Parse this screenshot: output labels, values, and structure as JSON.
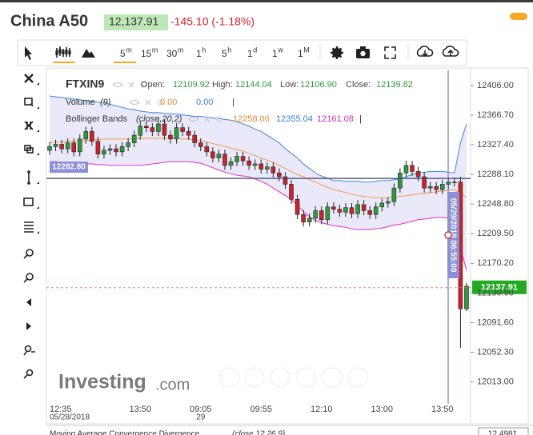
{
  "header": {
    "title": "China A50",
    "price": "12,137.91",
    "change": "-145.10 (-1.18%)"
  },
  "toolbar": {
    "intervals": [
      [
        "5",
        "m"
      ],
      [
        "15",
        "m"
      ],
      [
        "30",
        "m"
      ],
      [
        "1",
        "h"
      ],
      [
        "5",
        "h"
      ],
      [
        "1",
        "d"
      ],
      [
        "1",
        "w"
      ],
      [
        "1",
        "M"
      ]
    ]
  },
  "legend": {
    "symbol": "FTXIN9",
    "ohlc": [
      {
        "label": "Open:",
        "value": "12109.92"
      },
      {
        "label": "High:",
        "value": "12144.04"
      },
      {
        "label": "Low:",
        "value": "12106.90"
      },
      {
        "label": "Close:",
        "value": "12139.82"
      }
    ],
    "volume": {
      "name": "Volume",
      "params": "(9)",
      "values": [
        "0.00",
        "0.00"
      ],
      "sep": "|"
    },
    "bollinger": {
      "name": "Bollinger Bands",
      "params": "(close,20,2)",
      "values": [
        "12258.06",
        "12355.04",
        "12161.08"
      ],
      "sep": "|"
    }
  },
  "crosshair": {
    "price": "12282.80",
    "time": "05/29/2018 06:55:00"
  },
  "watermark": {
    "brand": "Investing",
    "suffix": ".com"
  },
  "macd": {
    "name": "Moving Average Convergence Divergence",
    "params": "(close,12,26,9)",
    "value": "12.4981"
  },
  "chart_data": {
    "type": "candlestick",
    "categories": [
      "12:35",
      null,
      null,
      null,
      null,
      null,
      null,
      null,
      null,
      null,
      null,
      null,
      null,
      null,
      null,
      "13:50",
      null,
      null,
      null,
      null,
      null,
      null,
      null,
      null,
      null,
      "09:05",
      null,
      null,
      null,
      null,
      null,
      null,
      null,
      null,
      null,
      "09:55",
      null,
      null,
      null,
      null,
      null,
      null,
      null,
      null,
      null,
      "12:10",
      null,
      null,
      null,
      null,
      null,
      null,
      null,
      null,
      null,
      "13:00",
      null,
      null,
      null,
      null,
      null,
      null,
      null,
      null,
      null,
      "13:50",
      null,
      null,
      null,
      null
    ],
    "dates": [
      "05/28/2018",
      null,
      null,
      null,
      null,
      null,
      null,
      null,
      null,
      null,
      null,
      null,
      null,
      null,
      null,
      null,
      null,
      null,
      null,
      null,
      null,
      null,
      null,
      null,
      null,
      "29",
      null,
      null,
      null,
      null,
      null,
      null,
      null,
      null,
      null,
      null,
      null,
      null,
      null,
      null,
      null,
      null,
      null,
      null,
      null,
      null,
      null,
      null,
      null,
      null,
      null,
      null,
      null,
      null,
      null,
      null,
      null,
      null,
      null,
      null,
      null,
      null,
      null,
      null,
      null,
      null,
      null,
      null,
      null,
      null
    ],
    "open": [
      12320,
      12325,
      12328,
      12322,
      12330,
      12318,
      12335,
      12345,
      12332,
      12315,
      12320,
      12322,
      12318,
      12325,
      12330,
      12340,
      12352,
      12350,
      12345,
      12355,
      12340,
      12335,
      12350,
      12345,
      12340,
      12330,
      12325,
      12318,
      12310,
      12315,
      12300,
      12305,
      12312,
      12306,
      12300,
      12302,
      12295,
      12298,
      12290,
      12285,
      12275,
      12255,
      12235,
      12225,
      12230,
      12240,
      12228,
      12245,
      12242,
      12238,
      12244,
      12236,
      12248,
      12240,
      12235,
      12245,
      12250,
      12252,
      12270,
      12290,
      12300,
      12292,
      12285,
      12270,
      12272,
      12268,
      12275,
      12278,
      12278,
      12109.92
    ],
    "high": [
      12331,
      12334,
      12334,
      12336,
      12336,
      12341,
      12351,
      12351,
      12338,
      12326,
      12328,
      12328,
      12331,
      12336,
      12346,
      12358,
      12358,
      12356,
      12361,
      12361,
      12346,
      12356,
      12356,
      12351,
      12346,
      12336,
      12331,
      12324,
      12321,
      12321,
      12311,
      12318,
      12318,
      12312,
      12308,
      12308,
      12304,
      12304,
      12296,
      12291,
      12281,
      12261,
      12241,
      12236,
      12246,
      12246,
      12251,
      12251,
      12248,
      12250,
      12250,
      12254,
      12254,
      12246,
      12251,
      12256,
      12258,
      12276,
      12296,
      12306,
      12306,
      12298,
      12291,
      12278,
      12278,
      12281,
      12284,
      12284,
      12285,
      12144.04
    ],
    "low": [
      12314,
      12319,
      12316,
      12316,
      12312,
      12312,
      12329,
      12326,
      12309,
      12309,
      12314,
      12312,
      12312,
      12319,
      12324,
      12334,
      12344,
      12339,
      12339,
      12334,
      12329,
      12329,
      12339,
      12334,
      12324,
      12319,
      12312,
      12304,
      12304,
      12294,
      12294,
      12299,
      12300,
      12294,
      12294,
      12289,
      12289,
      12284,
      12279,
      12269,
      12249,
      12229,
      12219,
      12219,
      12224,
      12222,
      12222,
      12236,
      12232,
      12232,
      12230,
      12230,
      12234,
      12229,
      12229,
      12239,
      12244,
      12246,
      12264,
      12284,
      12286,
      12279,
      12264,
      12264,
      12262,
      12262,
      12269,
      12272,
      12058,
      12106.9
    ],
    "close": [
      12325,
      12328,
      12322,
      12330,
      12318,
      12335,
      12345,
      12332,
      12315,
      12320,
      12322,
      12318,
      12325,
      12330,
      12340,
      12352,
      12350,
      12345,
      12355,
      12340,
      12335,
      12350,
      12345,
      12340,
      12330,
      12325,
      12318,
      12310,
      12315,
      12300,
      12305,
      12312,
      12306,
      12300,
      12302,
      12295,
      12298,
      12290,
      12285,
      12275,
      12255,
      12235,
      12225,
      12230,
      12240,
      12228,
      12245,
      12242,
      12238,
      12244,
      12236,
      12248,
      12240,
      12235,
      12245,
      12250,
      12252,
      12270,
      12290,
      12300,
      12292,
      12285,
      12270,
      12272,
      12268,
      12275,
      12278,
      12278,
      12110,
      12139.82
    ],
    "up_color": "#2f9a3c",
    "down_color": "#c8232c",
    "bollinger": {
      "upper_color": "#4d8fd8",
      "middle_color": "#f0a060",
      "lower_color": "#e040c8",
      "fill": "#e9e9fa",
      "upper": [
        12392,
        12391,
        12390,
        12389,
        12388,
        12387,
        12386,
        12385,
        12384,
        12383,
        12381,
        12379,
        12377,
        12375,
        12374,
        12372,
        12371,
        12370,
        12370,
        12369,
        12368,
        12368,
        12367,
        12366,
        12365,
        12365,
        12364,
        12363,
        12362,
        12361,
        12360,
        12358,
        12355,
        12352,
        12348,
        12345,
        12340,
        12335,
        12330,
        12322,
        12316,
        12310,
        12302,
        12296,
        12290,
        12286,
        12283,
        12280,
        12280,
        12279,
        12279,
        12279,
        12278,
        12278,
        12279,
        12280,
        12280,
        12281,
        12282,
        12285,
        12288,
        12290,
        12291,
        12292,
        12292,
        12292,
        12291,
        12290,
        12330,
        12355.04
      ],
      "middle": [
        12330,
        12331,
        12331,
        12332,
        12332,
        12333,
        12333,
        12334,
        12334,
        12335,
        12335,
        12335,
        12335,
        12335,
        12335,
        12336,
        12336,
        12336,
        12336,
        12336,
        12336,
        12336,
        12335,
        12335,
        12334,
        12333,
        12331,
        12329,
        12327,
        12325,
        12323,
        12321,
        12319,
        12316,
        12313,
        12310,
        12307,
        12304,
        12300,
        12296,
        12292,
        12288,
        12285,
        12281,
        12278,
        12274,
        12271,
        12268,
        12266,
        12264,
        12262,
        12260,
        12259,
        12258,
        12257,
        12257,
        12257,
        12258,
        12259,
        12260,
        12261,
        12262,
        12263,
        12264,
        12265,
        12266,
        12267,
        12268,
        12262,
        12258.06
      ],
      "lower": [
        12305,
        12305,
        12304,
        12304,
        12303,
        12303,
        12302,
        12302,
        12301,
        12301,
        12300,
        12300,
        12300,
        12300,
        12300,
        12300,
        12301,
        12302,
        12303,
        12304,
        12305,
        12305,
        12305,
        12305,
        12304,
        12303,
        12300,
        12297,
        12294,
        12291,
        12289,
        12287,
        12286,
        12285,
        12282,
        12279,
        12275,
        12270,
        12265,
        12260,
        12255,
        12247,
        12239,
        12232,
        12227,
        12224,
        12222,
        12220,
        12219,
        12218,
        12216,
        12215,
        12215,
        12215,
        12216,
        12217,
        12219,
        12221,
        12222,
        12224,
        12226,
        12228,
        12229,
        12230,
        12231,
        12231,
        12230,
        12225,
        12190,
        12161.08
      ]
    },
    "crosshair_y": 12282.8,
    "last_price": 12137.91,
    "ylim": [
      11984,
      12426
    ],
    "yticks": [
      {
        "value": 12406,
        "label": "12406.00"
      },
      {
        "value": 12366.7,
        "label": "12366.70"
      },
      {
        "value": 12327.4,
        "label": "12327.40"
      },
      {
        "value": 12288.1,
        "label": "12288.10"
      },
      {
        "value": 12248.8,
        "label": "12248.80"
      },
      {
        "value": 12209.5,
        "label": "12209.50"
      },
      {
        "value": 12170.2,
        "label": "12170.20"
      },
      {
        "value": 12130.9,
        "label": "12130.90"
      },
      {
        "value": 12091.6,
        "label": "12091.60"
      },
      {
        "value": 12052.3,
        "label": "12052.30"
      },
      {
        "value": 12013,
        "label": "12013.00"
      }
    ]
  }
}
